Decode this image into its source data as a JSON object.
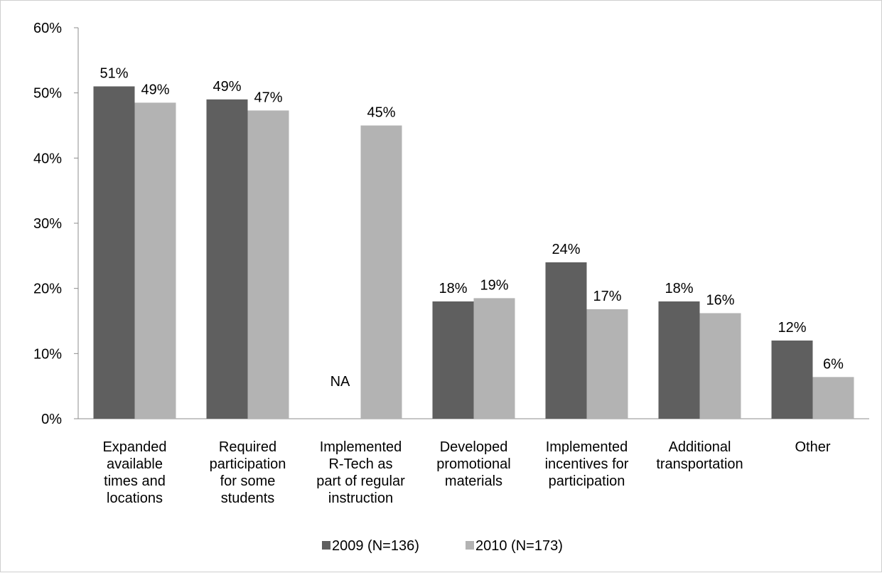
{
  "chart_data": {
    "type": "bar",
    "categories": [
      [
        "Expanded",
        "available",
        "times and",
        "locations"
      ],
      [
        "Required",
        "participation",
        "for some",
        "students"
      ],
      [
        "Implemented",
        "R-Tech as",
        "part of regular",
        "instruction"
      ],
      [
        "Developed",
        "promotional",
        "materials"
      ],
      [
        "Implemented",
        "incentives for",
        "participation"
      ],
      [
        "Additional",
        "transportation"
      ],
      [
        "Other"
      ]
    ],
    "series": [
      {
        "name": "2009 (N=136)",
        "color": "#5f5f5f",
        "values": [
          51,
          49,
          null,
          18,
          24,
          18,
          12
        ],
        "labels": [
          "51%",
          "49%",
          "NA",
          "18%",
          "24%",
          "18%",
          "12%"
        ]
      },
      {
        "name": "2010 (N=173)",
        "color": "#b3b3b3",
        "values": [
          48.5,
          47.3,
          45,
          18.5,
          16.8,
          16.2,
          6.4
        ],
        "labels": [
          "49%",
          "47%",
          "45%",
          "19%",
          "17%",
          "16%",
          "6%"
        ]
      }
    ],
    "y_ticks": [
      "0%",
      "10%",
      "20%",
      "30%",
      "40%",
      "50%",
      "60%"
    ],
    "ylim": [
      0,
      60
    ],
    "grid": false,
    "legend_position": "bottom"
  }
}
